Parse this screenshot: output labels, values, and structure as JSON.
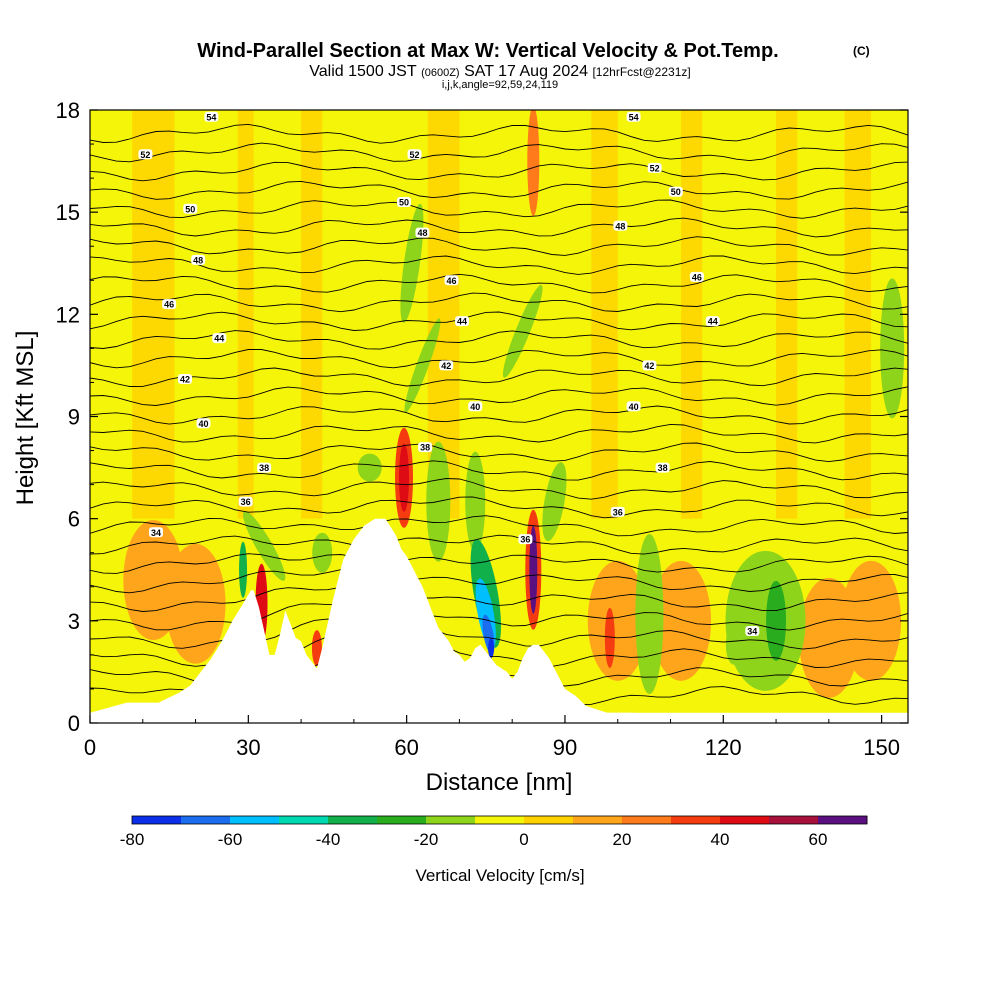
{
  "chart_data": {
    "type": "heatmap",
    "title": "Wind-Parallel Section at Max W: Vertical Velocity & Pot.Temp.",
    "title_mark": "(C)",
    "subtitle_valid": "Valid 1500 JST",
    "subtitle_utc": "(0600Z)",
    "subtitle_date": "SAT 17 Aug 2024",
    "subtitle_fcst": "[12hrFcst@2231z]",
    "subtitle_indices": "i,j,k,angle=92,59,24,119",
    "xlabel": "Distance [nm]",
    "ylabel": "Height [Kft MSL]",
    "xlim": [
      0,
      155
    ],
    "ylim": [
      0,
      18
    ],
    "xticks": [
      0,
      30,
      60,
      90,
      120,
      150
    ],
    "yticks": [
      0,
      3,
      6,
      9,
      12,
      15,
      18
    ],
    "colorbar": {
      "label": "Vertical Velocity [cm/s]",
      "ticks": [
        -80,
        -60,
        -40,
        -20,
        0,
        20,
        40,
        60
      ],
      "bins": [
        -80,
        -70,
        -60,
        -50,
        -40,
        -30,
        -20,
        -10,
        0,
        10,
        20,
        30,
        40,
        50,
        60,
        70
      ],
      "colors": [
        "#0b2ee8",
        "#1b6df0",
        "#00bfff",
        "#00d8b0",
        "#12b04a",
        "#29ad1e",
        "#8ed41a",
        "#f5f50a",
        "#ffd200",
        "#ffa51c",
        "#ff7a1a",
        "#f53c10",
        "#de0a14",
        "#a8103c",
        "#5a1080"
      ]
    },
    "theta_labels": [
      {
        "value": "54",
        "x": 23,
        "y": 17.8
      },
      {
        "value": "54",
        "x": 103,
        "y": 17.8
      },
      {
        "value": "52",
        "x": 10.5,
        "y": 16.7
      },
      {
        "value": "52",
        "x": 61.5,
        "y": 16.7
      },
      {
        "value": "52",
        "x": 107,
        "y": 16.3
      },
      {
        "value": "50",
        "x": 19,
        "y": 15.1
      },
      {
        "value": "50",
        "x": 59.5,
        "y": 15.3
      },
      {
        "value": "50",
        "x": 111,
        "y": 15.6
      },
      {
        "value": "48",
        "x": 20.5,
        "y": 13.6
      },
      {
        "value": "48",
        "x": 63,
        "y": 14.4
      },
      {
        "value": "48",
        "x": 100.5,
        "y": 14.6
      },
      {
        "value": "46",
        "x": 15,
        "y": 12.3
      },
      {
        "value": "46",
        "x": 68.5,
        "y": 13.0
      },
      {
        "value": "46",
        "x": 115,
        "y": 13.1
      },
      {
        "value": "44",
        "x": 24.5,
        "y": 11.3
      },
      {
        "value": "44",
        "x": 70.5,
        "y": 11.8
      },
      {
        "value": "44",
        "x": 118,
        "y": 11.8
      },
      {
        "value": "42",
        "x": 18,
        "y": 10.1
      },
      {
        "value": "42",
        "x": 67.5,
        "y": 10.5
      },
      {
        "value": "42",
        "x": 106,
        "y": 10.5
      },
      {
        "value": "40",
        "x": 21.5,
        "y": 8.8
      },
      {
        "value": "40",
        "x": 73,
        "y": 9.3
      },
      {
        "value": "40",
        "x": 103,
        "y": 9.3
      },
      {
        "value": "38",
        "x": 33,
        "y": 7.5
      },
      {
        "value": "38",
        "x": 63.5,
        "y": 8.1
      },
      {
        "value": "38",
        "x": 108.5,
        "y": 7.5
      },
      {
        "value": "36",
        "x": 29.5,
        "y": 6.5
      },
      {
        "value": "36",
        "x": 82.5,
        "y": 5.4
      },
      {
        "value": "36",
        "x": 100,
        "y": 6.2
      },
      {
        "value": "34",
        "x": 12.5,
        "y": 5.6
      },
      {
        "value": "34",
        "x": 125.5,
        "y": 2.7
      }
    ],
    "terrain": {
      "x": [
        0,
        7,
        13,
        17,
        19,
        21,
        23,
        25,
        27,
        29,
        30.5,
        31,
        32,
        33,
        34,
        35,
        36,
        37,
        38,
        39,
        40,
        41,
        42,
        43,
        44,
        45,
        46,
        47,
        48,
        50,
        52,
        54,
        56,
        58,
        59,
        60,
        61,
        62,
        63,
        64,
        65,
        66,
        67,
        68,
        69,
        70,
        71,
        72,
        73,
        74,
        75,
        76,
        77,
        78,
        79,
        80,
        81,
        82,
        83,
        84,
        85,
        86,
        87,
        88,
        89,
        90,
        91,
        92,
        94,
        96,
        98,
        100,
        102,
        103
      ],
      "y": [
        0.3,
        0.6,
        0.6,
        0.9,
        1.1,
        1.5,
        1.9,
        2.4,
        3.0,
        3.5,
        3.9,
        3.9,
        3.4,
        2.7,
        2.0,
        2.0,
        2.6,
        3.3,
        2.9,
        2.5,
        2.4,
        2.0,
        1.8,
        1.6,
        2.2,
        2.9,
        3.6,
        4.2,
        4.8,
        5.4,
        5.8,
        6.0,
        6.0,
        5.5,
        5.1,
        4.9,
        4.6,
        4.3,
        4.0,
        3.6,
        3.2,
        2.8,
        2.6,
        2.4,
        2.1,
        2.0,
        1.8,
        1.9,
        2.2,
        2.3,
        2.1,
        1.9,
        1.7,
        1.6,
        1.5,
        1.3,
        1.5,
        1.9,
        2.2,
        2.3,
        2.3,
        2.1,
        1.9,
        1.6,
        1.3,
        1.0,
        0.9,
        0.8,
        0.5,
        0.4,
        0.3,
        0.3,
        0.3,
        0.3
      ]
    }
  }
}
